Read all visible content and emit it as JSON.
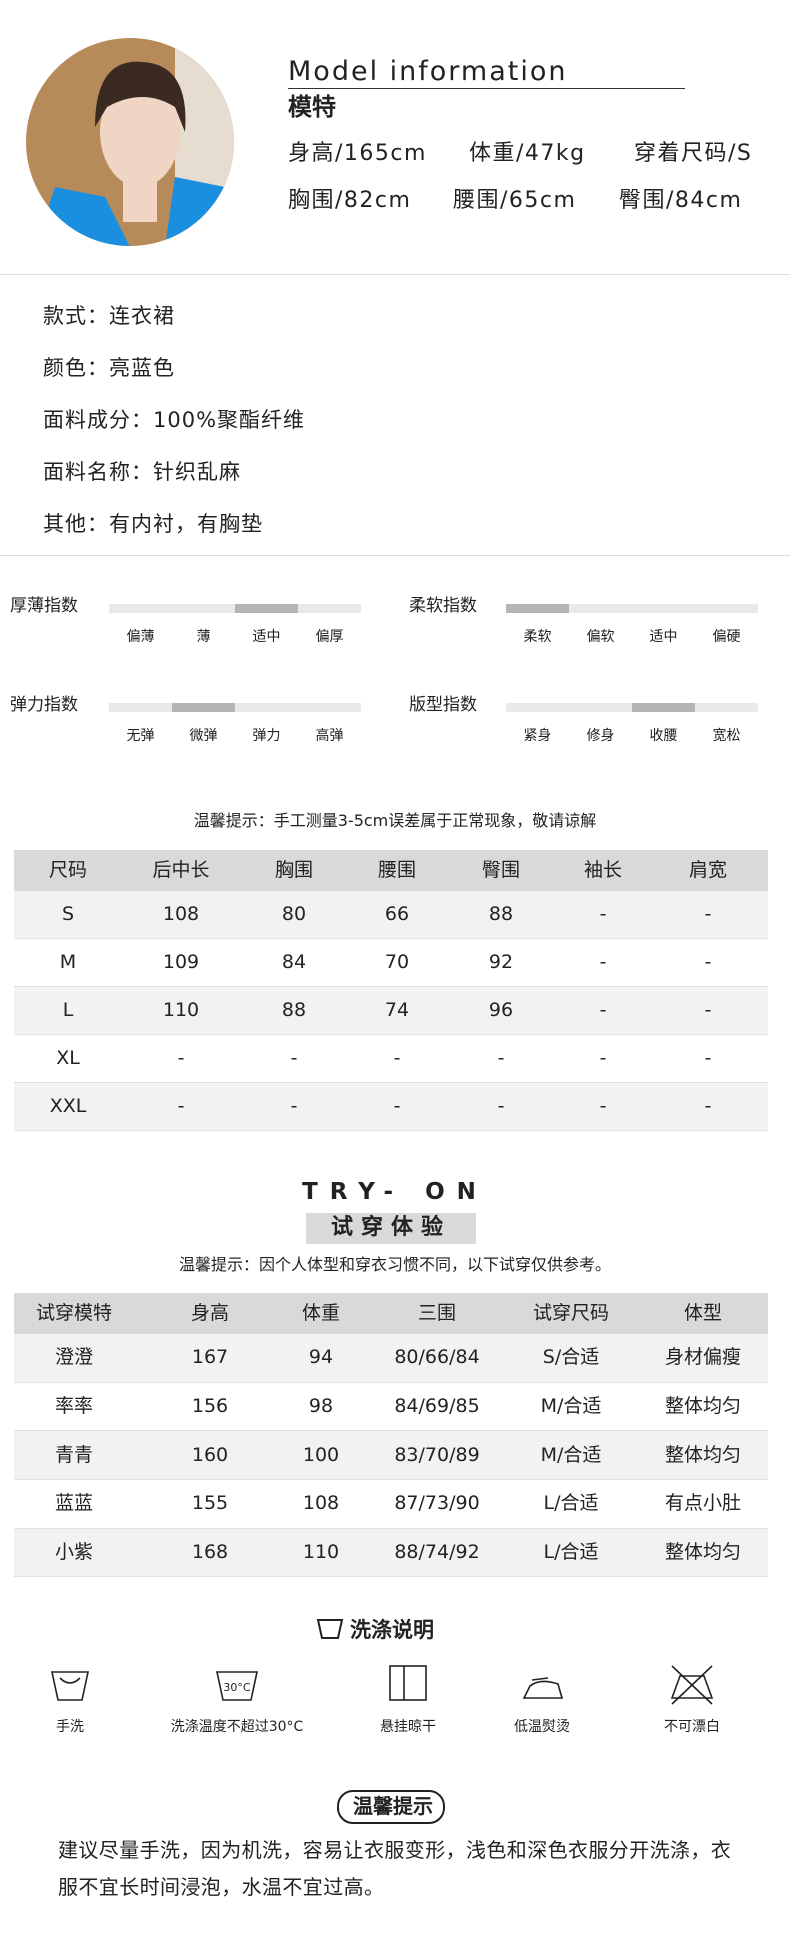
{
  "model": {
    "heading": "Model information",
    "title": "模特",
    "stats": [
      "身高/165cm",
      "体重/47kg",
      "穿着尺码/S",
      "胸围/82cm",
      "腰围/65cm",
      "臀围/84cm"
    ]
  },
  "specs": [
    "款式：连衣裙",
    "颜色：亮蓝色",
    "面料成分：100%聚酯纤维",
    "面料名称：针织乱麻",
    "其他：有内衬，有胸垫"
  ],
  "indices": [
    {
      "label": "厚薄指数",
      "levels": [
        "偏薄",
        "薄",
        "适中",
        "偏厚"
      ],
      "selected": 2
    },
    {
      "label": "柔软指数",
      "levels": [
        "柔软",
        "偏软",
        "适中",
        "偏硬"
      ],
      "selected": 0
    },
    {
      "label": "弹力指数",
      "levels": [
        "无弹",
        "微弹",
        "弹力",
        "高弹"
      ],
      "selected": 1
    },
    {
      "label": "版型指数",
      "levels": [
        "紧身",
        "修身",
        "收腰",
        "宽松"
      ],
      "selected": 2
    }
  ],
  "size_tip": "温馨提示：手工测量3-5cm误差属于正常现象，敬请谅解",
  "size_table": {
    "header": [
      "尺码",
      "后中长",
      "胸围",
      "腰围",
      "臀围",
      "袖长",
      "肩宽"
    ],
    "rows": [
      [
        "S",
        "108",
        "80",
        "66",
        "88",
        "-",
        "-"
      ],
      [
        "M",
        "109",
        "84",
        "70",
        "92",
        "-",
        "-"
      ],
      [
        "L",
        "110",
        "88",
        "74",
        "96",
        "-",
        "-"
      ],
      [
        "XL",
        "-",
        "-",
        "-",
        "-",
        "-",
        "-"
      ],
      [
        "XXL",
        "-",
        "-",
        "-",
        "-",
        "-",
        "-"
      ]
    ]
  },
  "tryon": {
    "heading": "TRY- ON",
    "title": "试穿体验",
    "tip": "温馨提示：因个人体型和穿衣习惯不同，以下试穿仅供参考。",
    "table": {
      "header": [
        "试穿模特",
        "身高",
        "体重",
        "三围",
        "试穿尺码",
        "体型"
      ],
      "rows": [
        [
          "澄澄",
          "167",
          "94",
          "80/66/84",
          "S/合适",
          "身材偏瘦"
        ],
        [
          "率率",
          "156",
          "98",
          "84/69/85",
          "M/合适",
          "整体均匀"
        ],
        [
          "青青",
          "160",
          "100",
          "83/70/89",
          "M/合适",
          "整体均匀"
        ],
        [
          "蓝蓝",
          "155",
          "108",
          "87/73/90",
          "L/合适",
          "有点小肚"
        ],
        [
          "小紫",
          "168",
          "110",
          "88/74/92",
          "L/合适",
          "整体均匀"
        ]
      ]
    }
  },
  "wash": {
    "title": "洗涤说明",
    "temp_icon": "30°C",
    "items": [
      "手洗",
      "洗涤温度不超过30°C",
      "悬挂晾干",
      "低温熨烫",
      "不可漂白"
    ]
  },
  "notice": {
    "title": "温馨提示",
    "text": "建议尽量手洗，因为机洗，容易让衣服变形，浅色和深色衣服分开洗涤，衣服不宜长时间浸泡，水温不宜过高。"
  }
}
